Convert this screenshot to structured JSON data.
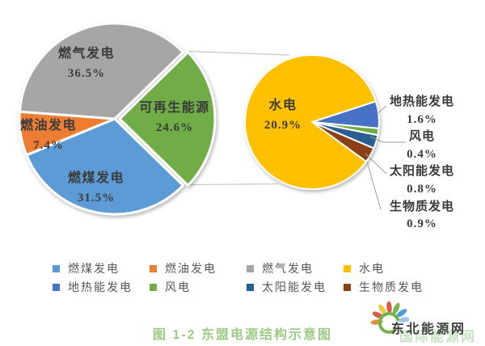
{
  "caption": "图 1-2 东盟电源结构示意图",
  "chart_data": {
    "type": "pie",
    "variant": "pie-of-pie",
    "title": "东盟电源结构示意图",
    "units": "percent",
    "legend_position": "bottom",
    "main_pie": {
      "slices": [
        {
          "key": "coal",
          "label": "燃煤发电",
          "value": 31.5,
          "pct": "31.5%",
          "color": "#5B9BD5"
        },
        {
          "key": "oil",
          "label": "燃油发电",
          "value": 7.4,
          "pct": "7.4%",
          "color": "#ED7D31"
        },
        {
          "key": "gas",
          "label": "燃气发电",
          "value": 36.5,
          "pct": "36.5%",
          "color": "#A6A6A6"
        },
        {
          "key": "renewables",
          "label": "可再生能源",
          "value": 24.6,
          "pct": "24.6%",
          "color": "#70AD47",
          "breakdown": "secondary_pie"
        }
      ]
    },
    "secondary_pie": {
      "breakdown_of": "可再生能源",
      "slices": [
        {
          "key": "hydro",
          "label": "水电",
          "value": 20.9,
          "pct": "20.9%",
          "color": "#FFC000"
        },
        {
          "key": "geothermal",
          "label": "地热能发电",
          "value": 1.6,
          "pct": "1.6%",
          "color": "#4472C4"
        },
        {
          "key": "wind",
          "label": "风电",
          "value": 0.4,
          "pct": "0.4%",
          "color": "#70AD47"
        },
        {
          "key": "solar",
          "label": "太阳能发电",
          "value": 0.8,
          "pct": "0.8%",
          "color": "#2A5E8F"
        },
        {
          "key": "biomass",
          "label": "生物质发电",
          "value": 0.9,
          "pct": "0.9%",
          "color": "#8C3F14"
        }
      ]
    },
    "legend": {
      "items": [
        {
          "key": "coal",
          "label": "燃煤发电",
          "color": "#5B9BD5"
        },
        {
          "key": "oil",
          "label": "燃油发电",
          "color": "#ED7D31"
        },
        {
          "key": "gas",
          "label": "燃气发电",
          "color": "#A6A6A6"
        },
        {
          "key": "hydro",
          "label": "水电",
          "color": "#FFC000"
        },
        {
          "key": "geothermal",
          "label": "地热能发电",
          "color": "#4472C4"
        },
        {
          "key": "wind",
          "label": "风电",
          "color": "#70AD47"
        },
        {
          "key": "solar",
          "label": "太阳能发电",
          "color": "#2A5E8F"
        },
        {
          "key": "biomass",
          "label": "生物质发电",
          "color": "#8C3F14"
        }
      ]
    }
  },
  "watermark": {
    "brand": "东北能源网",
    "ghost": "国际能源网"
  }
}
